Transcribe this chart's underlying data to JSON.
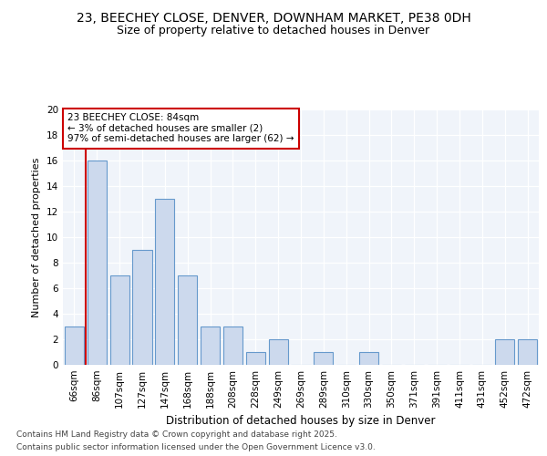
{
  "title1": "23, BEECHEY CLOSE, DENVER, DOWNHAM MARKET, PE38 0DH",
  "title2": "Size of property relative to detached houses in Denver",
  "xlabel": "Distribution of detached houses by size in Denver",
  "ylabel": "Number of detached properties",
  "categories": [
    "66sqm",
    "86sqm",
    "107sqm",
    "127sqm",
    "147sqm",
    "168sqm",
    "188sqm",
    "208sqm",
    "228sqm",
    "249sqm",
    "269sqm",
    "289sqm",
    "310sqm",
    "330sqm",
    "350sqm",
    "371sqm",
    "391sqm",
    "411sqm",
    "431sqm",
    "452sqm",
    "472sqm"
  ],
  "values": [
    3,
    16,
    7,
    9,
    13,
    7,
    3,
    3,
    1,
    2,
    0,
    1,
    0,
    1,
    0,
    0,
    0,
    0,
    0,
    2,
    2
  ],
  "bar_color": "#ccd9ed",
  "bar_edge_color": "#6699cc",
  "marker_color": "#cc0000",
  "annotation_line1": "23 BEECHEY CLOSE: 84sqm",
  "annotation_line2": "← 3% of detached houses are smaller (2)",
  "annotation_line3": "97% of semi-detached houses are larger (62) →",
  "annotation_box_color": "#ffffff",
  "annotation_box_edge": "#cc0000",
  "ylim": [
    0,
    20
  ],
  "yticks": [
    0,
    2,
    4,
    6,
    8,
    10,
    12,
    14,
    16,
    18,
    20
  ],
  "footer1": "Contains HM Land Registry data © Crown copyright and database right 2025.",
  "footer2": "Contains public sector information licensed under the Open Government Licence v3.0.",
  "bg_color": "#ffffff",
  "plot_bg": "#f0f4fa",
  "title1_fontsize": 10,
  "title2_fontsize": 9,
  "xlabel_fontsize": 8.5,
  "ylabel_fontsize": 8,
  "tick_fontsize": 7.5,
  "annotation_fontsize": 7.5,
  "footer_fontsize": 6.5
}
